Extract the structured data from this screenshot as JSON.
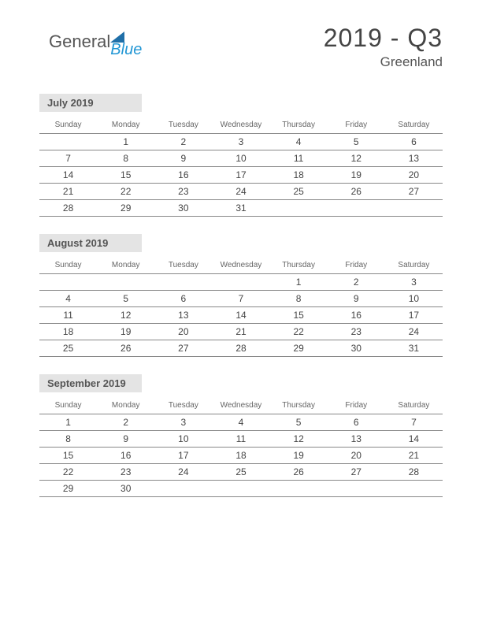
{
  "logo": {
    "text1": "General",
    "text2": "Blue"
  },
  "header": {
    "title": "2019 - Q3",
    "region": "Greenland"
  },
  "colors": {
    "background": "#ffffff",
    "month_label_bg": "#e4e4e4",
    "border": "#888888",
    "logo_triangle": "#1f6fa8",
    "logo_blue_text": "#2196d4",
    "text": "#444444"
  },
  "day_headers": [
    "Sunday",
    "Monday",
    "Tuesday",
    "Wednesday",
    "Thursday",
    "Friday",
    "Saturday"
  ],
  "months": [
    {
      "label": "July 2019",
      "weeks": [
        [
          "",
          "1",
          "2",
          "3",
          "4",
          "5",
          "6"
        ],
        [
          "7",
          "8",
          "9",
          "10",
          "11",
          "12",
          "13"
        ],
        [
          "14",
          "15",
          "16",
          "17",
          "18",
          "19",
          "20"
        ],
        [
          "21",
          "22",
          "23",
          "24",
          "25",
          "26",
          "27"
        ],
        [
          "28",
          "29",
          "30",
          "31",
          "",
          "",
          ""
        ]
      ]
    },
    {
      "label": "August 2019",
      "weeks": [
        [
          "",
          "",
          "",
          "",
          "1",
          "2",
          "3"
        ],
        [
          "4",
          "5",
          "6",
          "7",
          "8",
          "9",
          "10"
        ],
        [
          "11",
          "12",
          "13",
          "14",
          "15",
          "16",
          "17"
        ],
        [
          "18",
          "19",
          "20",
          "21",
          "22",
          "23",
          "24"
        ],
        [
          "25",
          "26",
          "27",
          "28",
          "29",
          "30",
          "31"
        ]
      ]
    },
    {
      "label": "September 2019",
      "weeks": [
        [
          "1",
          "2",
          "3",
          "4",
          "5",
          "6",
          "7"
        ],
        [
          "8",
          "9",
          "10",
          "11",
          "12",
          "13",
          "14"
        ],
        [
          "15",
          "16",
          "17",
          "18",
          "19",
          "20",
          "21"
        ],
        [
          "22",
          "23",
          "24",
          "25",
          "26",
          "27",
          "28"
        ],
        [
          "29",
          "30",
          "",
          "",
          "",
          "",
          ""
        ]
      ]
    }
  ]
}
